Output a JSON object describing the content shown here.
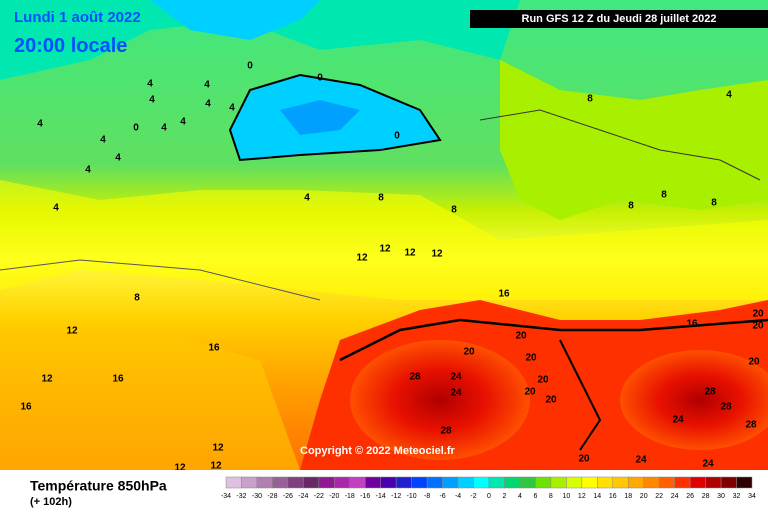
{
  "header": {
    "date": "Lundi 1 août 2022",
    "time": "20:00 locale",
    "run": "Run GFS 12 Z du Jeudi 28 juillet 2022"
  },
  "copyright": "Copyright © 2022 Meteociel.fr",
  "footer": {
    "title": "Température 850hPa",
    "lead": "(+ 102h)"
  },
  "colorbar": {
    "labels": [
      -34,
      -32,
      -30,
      -28,
      -26,
      -24,
      -22,
      -20,
      -18,
      -16,
      -14,
      -12,
      -10,
      -8,
      -6,
      -4,
      -2,
      0,
      2,
      4,
      6,
      8,
      10,
      12,
      14,
      16,
      18,
      20,
      22,
      24,
      26,
      28,
      30,
      32,
      34
    ],
    "colors": [
      "#e0c0e0",
      "#c8a0c8",
      "#b080b0",
      "#986098",
      "#804080",
      "#682868",
      "#901890",
      "#a828a8",
      "#c040c0",
      "#7000a0",
      "#4800b0",
      "#2020d0",
      "#0040ff",
      "#0070ff",
      "#00a0ff",
      "#00d0ff",
      "#00ffff",
      "#00e8b0",
      "#00d870",
      "#30c840",
      "#70e000",
      "#a8f000",
      "#d8ff00",
      "#ffff00",
      "#ffe000",
      "#ffc800",
      "#ffa800",
      "#ff8800",
      "#ff6000",
      "#ff3000",
      "#e00000",
      "#b00000",
      "#800000",
      "#300000"
    ]
  },
  "contour_labels": [
    4,
    4,
    4,
    4,
    4,
    4,
    4,
    4,
    4,
    4,
    4,
    4,
    4,
    0,
    0,
    0,
    0,
    8,
    4,
    8,
    8,
    8,
    8,
    8,
    12,
    12,
    12,
    12,
    8,
    12,
    16,
    16,
    16,
    16,
    16,
    12,
    20,
    20,
    20,
    20,
    20,
    20,
    28,
    24,
    24,
    28,
    28,
    28,
    20,
    20,
    20,
    24,
    28,
    20,
    24,
    24,
    12,
    12,
    12
  ]
}
